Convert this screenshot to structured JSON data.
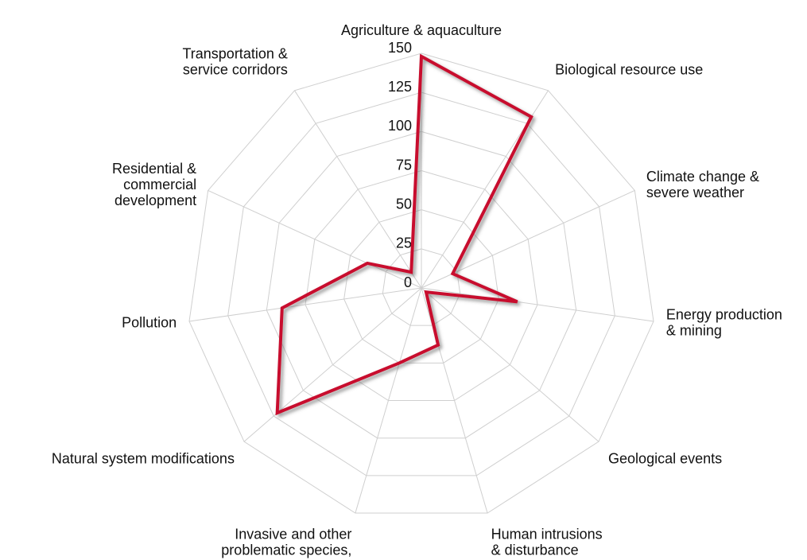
{
  "chart_data": {
    "type": "radar",
    "categories": [
      "Agriculture & aquaculture",
      "Biological resource use",
      "Climate change &\nsevere weather",
      "Energy production\n& mining",
      "Geological events",
      "Human intrusions\n& disturbance",
      "Invasive and other\nproblematic species,\ngenes & diseases",
      "Natural system modifications",
      "Pollution",
      "Residential &\ncommercial\ndevelopment",
      "Transportation &\nservice corridors"
    ],
    "values": [
      148,
      130,
      22,
      62,
      4,
      38,
      50,
      122,
      90,
      38,
      12
    ],
    "color": "#c8102e",
    "ylim": [
      0,
      150
    ],
    "yticks": [
      0,
      25,
      50,
      75,
      100,
      125,
      150
    ],
    "grid": true
  }
}
